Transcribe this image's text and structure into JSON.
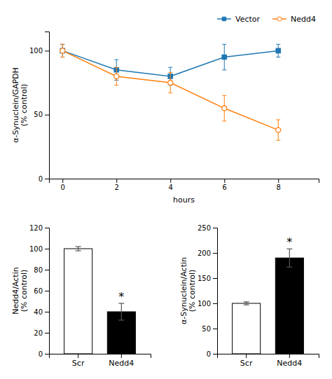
{
  "chart_data": [
    {
      "type": "line",
      "x": [
        0,
        2,
        4,
        6,
        8
      ],
      "series": [
        {
          "name": "Vector",
          "marker": "square",
          "values": [
            100,
            85,
            80,
            95,
            100
          ],
          "errors": [
            5,
            8,
            7,
            10,
            5
          ]
        },
        {
          "name": "Nedd4",
          "marker": "circle",
          "values": [
            100,
            80,
            75,
            55,
            38
          ],
          "errors": [
            5,
            7,
            8,
            10,
            8
          ]
        }
      ],
      "x_label": "hours",
      "y_label": "α-Synuclein/GAPDH\n(% control)",
      "xlim": [
        -0.5,
        9.5
      ],
      "xticks": [
        0,
        2,
        4,
        6,
        8
      ],
      "ylim": [
        0,
        115
      ],
      "yticks": [
        0,
        50,
        100
      ],
      "legend": "upper right"
    },
    {
      "type": "bar",
      "categories": [
        "Scr",
        "Nedd4"
      ],
      "values": [
        100,
        40
      ],
      "errors": [
        2,
        8
      ],
      "colors": [
        "#ffffff",
        "#000000"
      ],
      "y_label": "Nedd4/Actin\n(% control)",
      "ylim": [
        0,
        120
      ],
      "yticks": [
        0,
        20,
        40,
        60,
        80,
        100,
        120
      ],
      "annotations": [
        {
          "text": "*",
          "x": "Nedd4"
        }
      ]
    },
    {
      "type": "bar",
      "categories": [
        "Scr",
        "Nedd4"
      ],
      "values": [
        100,
        190
      ],
      "errors": [
        3,
        18
      ],
      "colors": [
        "#ffffff",
        "#000000"
      ],
      "y_label": "α-Synuclein/Actin\n(% control)",
      "ylim": [
        0,
        250
      ],
      "yticks": [
        0,
        50,
        100,
        150,
        200,
        250
      ],
      "annotations": [
        {
          "text": "*",
          "x": "Nedd4"
        }
      ]
    }
  ]
}
